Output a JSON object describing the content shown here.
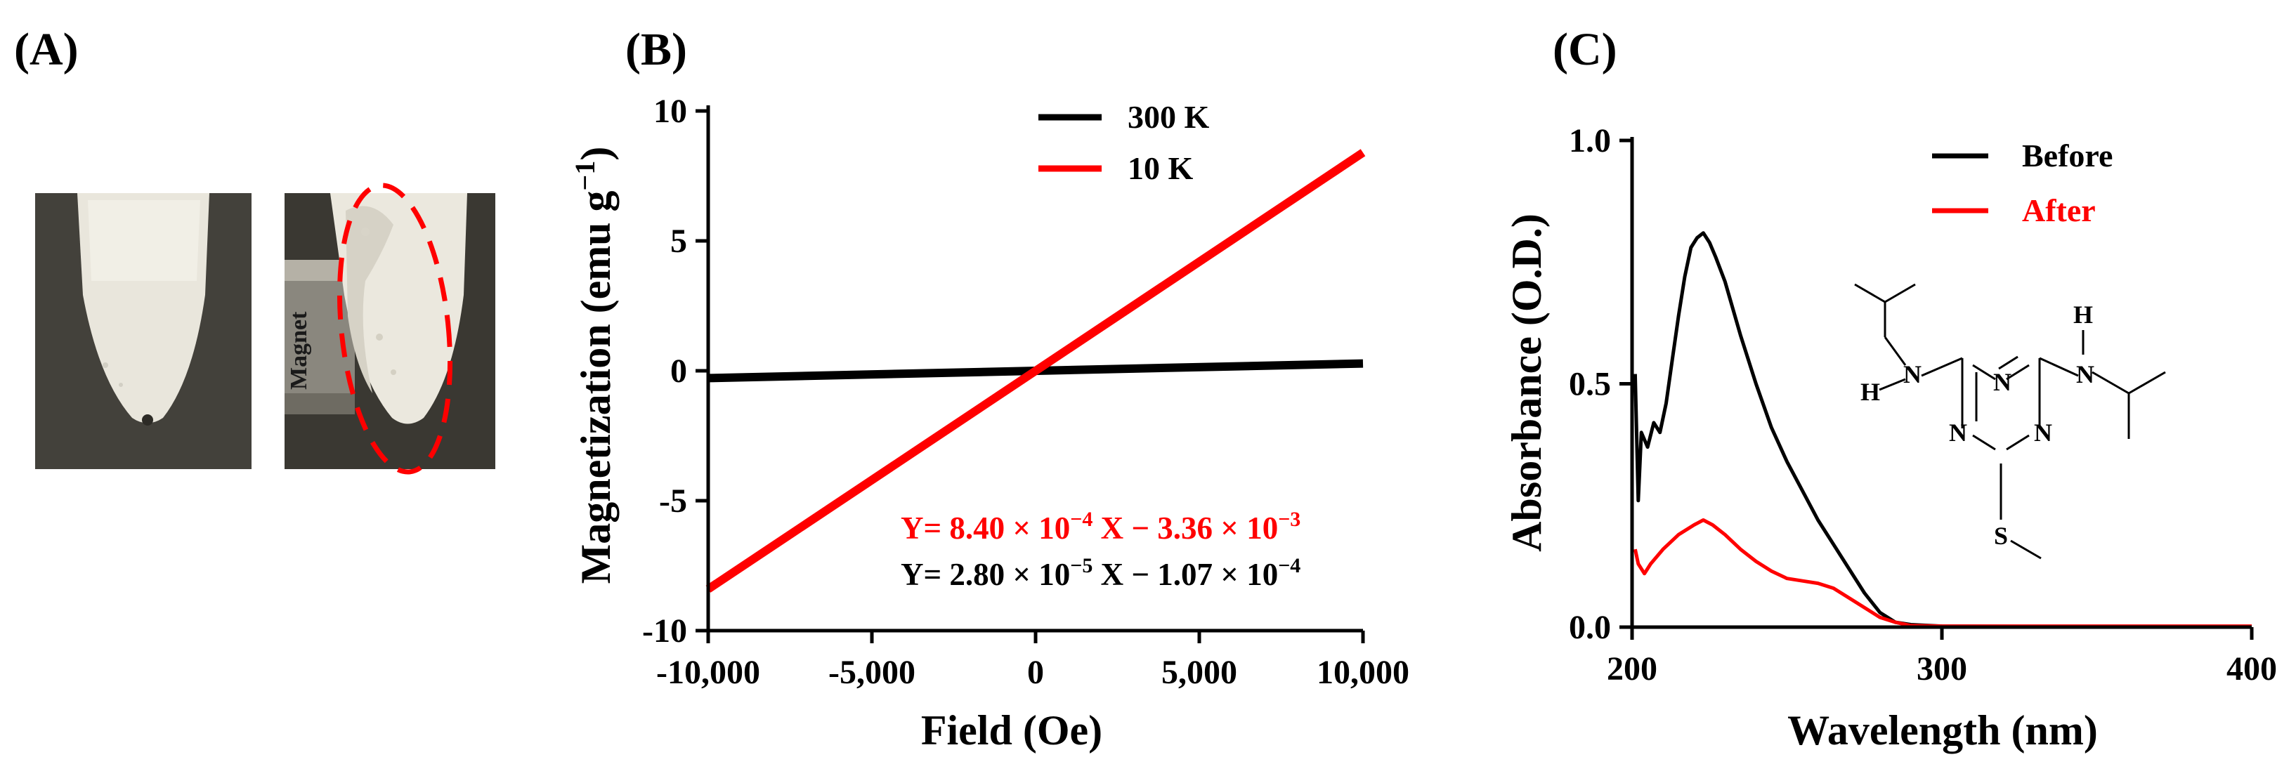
{
  "panels": {
    "a": {
      "label": "(A)",
      "magnet_label": "Magnet"
    },
    "b": {
      "label": "(B)"
    },
    "c": {
      "label": "(C)"
    }
  },
  "equations": {
    "red": {
      "prefix": "Y= 8.40 × 10",
      "exp1": "−4",
      "mid": " X − 3.36 × 10",
      "exp2": "−3"
    },
    "black": {
      "prefix": "Y= 2.80 × 10",
      "exp1": "−5",
      "mid": " X − 1.07 × 10",
      "exp2": "−4"
    }
  },
  "molecule_atoms": {
    "N1": "N",
    "N2": "N",
    "N3": "N",
    "N4": "N",
    "N5": "N",
    "H1": "H",
    "H2": "H",
    "S": "S"
  },
  "colors": {
    "black": "#000000",
    "red": "#ff0000",
    "bg": "#ffffff"
  },
  "chart_data": [
    {
      "id": "B",
      "type": "line",
      "xlabel": "Field (Oe)",
      "ylabel": "Magnetization (emu g",
      "ylabel_sup": "−1",
      "ylabel_end": ")",
      "xlim": [
        -10000,
        10000
      ],
      "ylim": [
        -10,
        10
      ],
      "xticks": [
        -10000,
        -5000,
        0,
        5000,
        10000
      ],
      "xtick_labels": [
        "-10,000",
        "-5,000",
        "0",
        "5,000",
        "10,000"
      ],
      "yticks": [
        -10,
        -5,
        0,
        5,
        10
      ],
      "ytick_labels": [
        "-10",
        "-5",
        "0",
        "5",
        "10"
      ],
      "legend": "top-right",
      "series": [
        {
          "name": "300 K",
          "color": "#000000",
          "slope": 2.8e-05,
          "intercept": -0.000107
        },
        {
          "name": "10 K",
          "color": "#ff0000",
          "slope": 0.00084,
          "intercept": -0.00336
        }
      ]
    },
    {
      "id": "C",
      "type": "line",
      "xlabel": "Wavelength (nm)",
      "ylabel": "Absorbance (O.D.)",
      "xlim": [
        200,
        400
      ],
      "ylim": [
        0,
        1.0
      ],
      "xticks": [
        200,
        300,
        400
      ],
      "xtick_labels": [
        "200",
        "300",
        "400"
      ],
      "yticks": [
        0,
        0.5,
        1.0
      ],
      "ytick_labels": [
        "0.0",
        "0.5",
        "1.0"
      ],
      "legend": "top-right",
      "series": [
        {
          "name": "Before",
          "color": "#000000",
          "points": [
            [
              201,
              0.52
            ],
            [
              202,
              0.26
            ],
            [
              203,
              0.4
            ],
            [
              205,
              0.37
            ],
            [
              207,
              0.42
            ],
            [
              209,
              0.4
            ],
            [
              211,
              0.46
            ],
            [
              213,
              0.55
            ],
            [
              215,
              0.64
            ],
            [
              217,
              0.72
            ],
            [
              219,
              0.78
            ],
            [
              221,
              0.8
            ],
            [
              223,
              0.81
            ],
            [
              225,
              0.79
            ],
            [
              227,
              0.76
            ],
            [
              230,
              0.71
            ],
            [
              235,
              0.6
            ],
            [
              240,
              0.5
            ],
            [
              245,
              0.41
            ],
            [
              250,
              0.34
            ],
            [
              255,
              0.28
            ],
            [
              260,
              0.22
            ],
            [
              265,
              0.17
            ],
            [
              270,
              0.12
            ],
            [
              275,
              0.07
            ],
            [
              280,
              0.03
            ],
            [
              285,
              0.01
            ],
            [
              290,
              0.005
            ],
            [
              300,
              0.002
            ],
            [
              350,
              0.001
            ],
            [
              400,
              0.001
            ]
          ]
        },
        {
          "name": "After",
          "color": "#ff0000",
          "points": [
            [
              201,
              0.16
            ],
            [
              202,
              0.13
            ],
            [
              204,
              0.11
            ],
            [
              206,
              0.13
            ],
            [
              210,
              0.16
            ],
            [
              215,
              0.19
            ],
            [
              220,
              0.21
            ],
            [
              223,
              0.22
            ],
            [
              226,
              0.21
            ],
            [
              230,
              0.19
            ],
            [
              235,
              0.16
            ],
            [
              240,
              0.135
            ],
            [
              245,
              0.115
            ],
            [
              250,
              0.1
            ],
            [
              255,
              0.095
            ],
            [
              260,
              0.09
            ],
            [
              265,
              0.08
            ],
            [
              270,
              0.06
            ],
            [
              275,
              0.04
            ],
            [
              280,
              0.02
            ],
            [
              285,
              0.01
            ],
            [
              290,
              0.003
            ],
            [
              300,
              0.002
            ],
            [
              350,
              0.002
            ],
            [
              400,
              0.002
            ]
          ]
        }
      ]
    }
  ]
}
